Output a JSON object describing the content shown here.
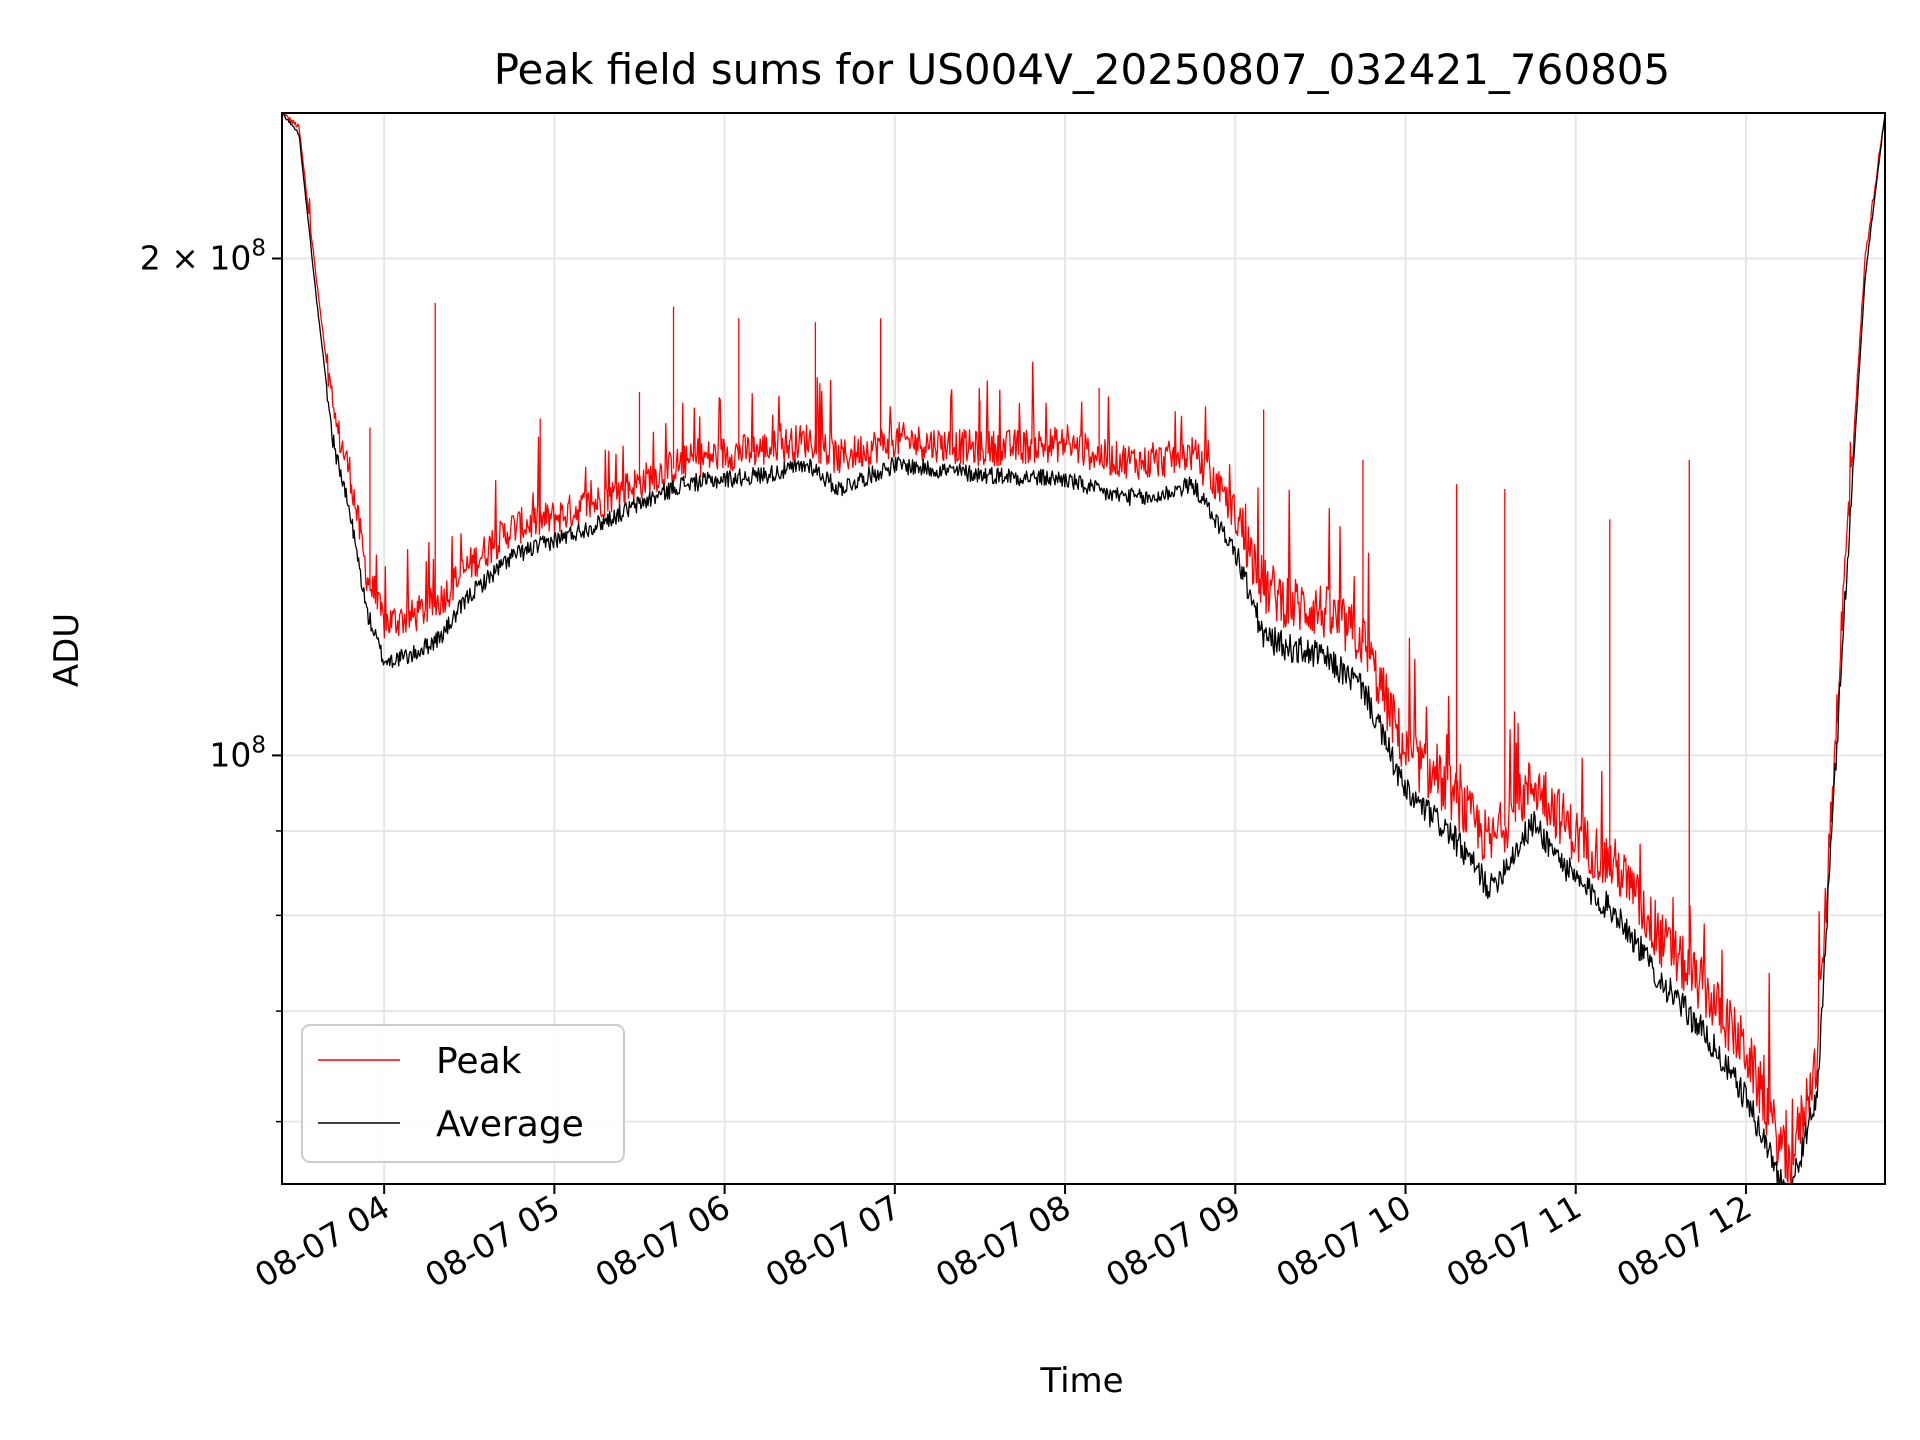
{
  "chart_data": {
    "type": "line",
    "title": "Peak field sums for US004V_20250807_032421_760805",
    "xlabel": "Time",
    "ylabel": "ADU",
    "y_scale": "log",
    "ylim": [
      55000000,
      245000000
    ],
    "xlim": [
      "2025-08-07 03:24",
      "2025-08-07 12:49"
    ],
    "grid": true,
    "legend_position": "lower-left",
    "x_ticks": [
      "08-07 04",
      "08-07 05",
      "08-07 06",
      "08-07 07",
      "08-07 08",
      "08-07 09",
      "08-07 10",
      "08-07 11",
      "08-07 12"
    ],
    "y_ticks": [
      "2 × 10^8",
      "10^8"
    ],
    "y_tick_values": [
      200000000,
      100000000
    ],
    "y_minor_tick_values": [
      60000000,
      70000000,
      80000000,
      90000000
    ],
    "series": [
      {
        "name": "Peak",
        "color": "#ff0000",
        "points": [
          [
            "2025-08-07 03:24",
            245000000
          ],
          [
            "2025-08-07 03:30",
            240000000
          ],
          [
            "2025-08-07 03:36",
            195000000
          ],
          [
            "2025-08-07 03:42",
            160000000
          ],
          [
            "2025-08-07 03:48",
            148000000
          ],
          [
            "2025-08-07 03:54",
            128000000
          ],
          [
            "2025-08-07 04:00",
            120000000
          ],
          [
            "2025-08-07 04:10",
            121000000
          ],
          [
            "2025-08-07 04:20",
            124000000
          ],
          [
            "2025-08-07 04:30",
            130000000
          ],
          [
            "2025-08-07 04:45",
            137000000
          ],
          [
            "2025-08-07 05:00",
            139000000
          ],
          [
            "2025-08-07 05:15",
            142000000
          ],
          [
            "2025-08-07 05:30",
            146000000
          ],
          [
            "2025-08-07 05:45",
            150000000
          ],
          [
            "2025-08-07 06:00",
            152000000
          ],
          [
            "2025-08-07 06:15",
            153000000
          ],
          [
            "2025-08-07 06:30",
            155000000
          ],
          [
            "2025-08-07 06:40",
            151000000
          ],
          [
            "2025-08-07 07:00",
            155000000
          ],
          [
            "2025-08-07 07:30",
            153000000
          ],
          [
            "2025-08-07 08:00",
            154000000
          ],
          [
            "2025-08-07 08:15",
            151000000
          ],
          [
            "2025-08-07 08:30",
            150000000
          ],
          [
            "2025-08-07 08:45",
            152000000
          ],
          [
            "2025-08-07 09:00",
            140000000
          ],
          [
            "2025-08-07 09:10",
            126000000
          ],
          [
            "2025-08-07 09:20",
            123000000
          ],
          [
            "2025-08-07 09:30",
            122000000
          ],
          [
            "2025-08-07 09:45",
            117000000
          ],
          [
            "2025-08-07 10:00",
            100000000
          ],
          [
            "2025-08-07 10:15",
            95000000
          ],
          [
            "2025-08-07 10:30",
            88000000
          ],
          [
            "2025-08-07 10:45",
            96000000
          ],
          [
            "2025-08-07 11:00",
            89000000
          ],
          [
            "2025-08-07 11:15",
            85000000
          ],
          [
            "2025-08-07 11:30",
            77000000
          ],
          [
            "2025-08-07 11:45",
            72000000
          ],
          [
            "2025-08-07 12:00",
            66000000
          ],
          [
            "2025-08-07 12:15",
            56000000
          ],
          [
            "2025-08-07 12:25",
            65000000
          ],
          [
            "2025-08-07 12:35",
            130000000
          ],
          [
            "2025-08-07 12:42",
            200000000
          ],
          [
            "2025-08-07 12:49",
            245000000
          ]
        ],
        "spikes": [
          [
            "2025-08-07 03:55",
            158000000
          ],
          [
            "2025-08-07 04:18",
            188000000
          ],
          [
            "2025-08-07 04:55",
            160000000
          ],
          [
            "2025-08-07 05:30",
            166000000
          ],
          [
            "2025-08-07 05:42",
            187000000
          ],
          [
            "2025-08-07 06:05",
            184000000
          ],
          [
            "2025-08-07 06:32",
            183000000
          ],
          [
            "2025-08-07 06:55",
            184000000
          ],
          [
            "2025-08-07 07:30",
            164000000
          ],
          [
            "2025-08-07 08:12",
            167000000
          ],
          [
            "2025-08-07 09:10",
            162000000
          ],
          [
            "2025-08-07 09:45",
            151000000
          ],
          [
            "2025-08-07 10:18",
            146000000
          ],
          [
            "2025-08-07 10:35",
            145000000
          ],
          [
            "2025-08-07 11:12",
            139000000
          ],
          [
            "2025-08-07 11:40",
            151000000
          ]
        ]
      },
      {
        "name": "Average",
        "color": "#000000",
        "points": [
          [
            "2025-08-07 03:24",
            245000000
          ],
          [
            "2025-08-07 03:30",
            238000000
          ],
          [
            "2025-08-07 03:36",
            190000000
          ],
          [
            "2025-08-07 03:42",
            155000000
          ],
          [
            "2025-08-07 03:48",
            140000000
          ],
          [
            "2025-08-07 03:54",
            122000000
          ],
          [
            "2025-08-07 04:00",
            114000000
          ],
          [
            "2025-08-07 04:10",
            115000000
          ],
          [
            "2025-08-07 04:20",
            118000000
          ],
          [
            "2025-08-07 04:30",
            125000000
          ],
          [
            "2025-08-07 04:45",
            132000000
          ],
          [
            "2025-08-07 05:00",
            135000000
          ],
          [
            "2025-08-07 05:15",
            138000000
          ],
          [
            "2025-08-07 05:30",
            142000000
          ],
          [
            "2025-08-07 05:45",
            146000000
          ],
          [
            "2025-08-07 06:00",
            147000000
          ],
          [
            "2025-08-07 06:15",
            148000000
          ],
          [
            "2025-08-07 06:30",
            150000000
          ],
          [
            "2025-08-07 06:40",
            145000000
          ],
          [
            "2025-08-07 07:00",
            150000000
          ],
          [
            "2025-08-07 07:30",
            148000000
          ],
          [
            "2025-08-07 08:00",
            147000000
          ],
          [
            "2025-08-07 08:15",
            144000000
          ],
          [
            "2025-08-07 08:30",
            143000000
          ],
          [
            "2025-08-07 08:45",
            146000000
          ],
          [
            "2025-08-07 09:00",
            133000000
          ],
          [
            "2025-08-07 09:10",
            118000000
          ],
          [
            "2025-08-07 09:20",
            116000000
          ],
          [
            "2025-08-07 09:30",
            115000000
          ],
          [
            "2025-08-07 09:45",
            110000000
          ],
          [
            "2025-08-07 10:00",
            95000000
          ],
          [
            "2025-08-07 10:15",
            90000000
          ],
          [
            "2025-08-07 10:30",
            83000000
          ],
          [
            "2025-08-07 10:45",
            91000000
          ],
          [
            "2025-08-07 11:00",
            84000000
          ],
          [
            "2025-08-07 11:15",
            80000000
          ],
          [
            "2025-08-07 11:30",
            73000000
          ],
          [
            "2025-08-07 11:45",
            68000000
          ],
          [
            "2025-08-07 12:00",
            62000000
          ],
          [
            "2025-08-07 12:15",
            54000000
          ],
          [
            "2025-08-07 12:25",
            62000000
          ],
          [
            "2025-08-07 12:35",
            125000000
          ],
          [
            "2025-08-07 12:42",
            195000000
          ],
          [
            "2025-08-07 12:49",
            245000000
          ]
        ]
      }
    ]
  }
}
